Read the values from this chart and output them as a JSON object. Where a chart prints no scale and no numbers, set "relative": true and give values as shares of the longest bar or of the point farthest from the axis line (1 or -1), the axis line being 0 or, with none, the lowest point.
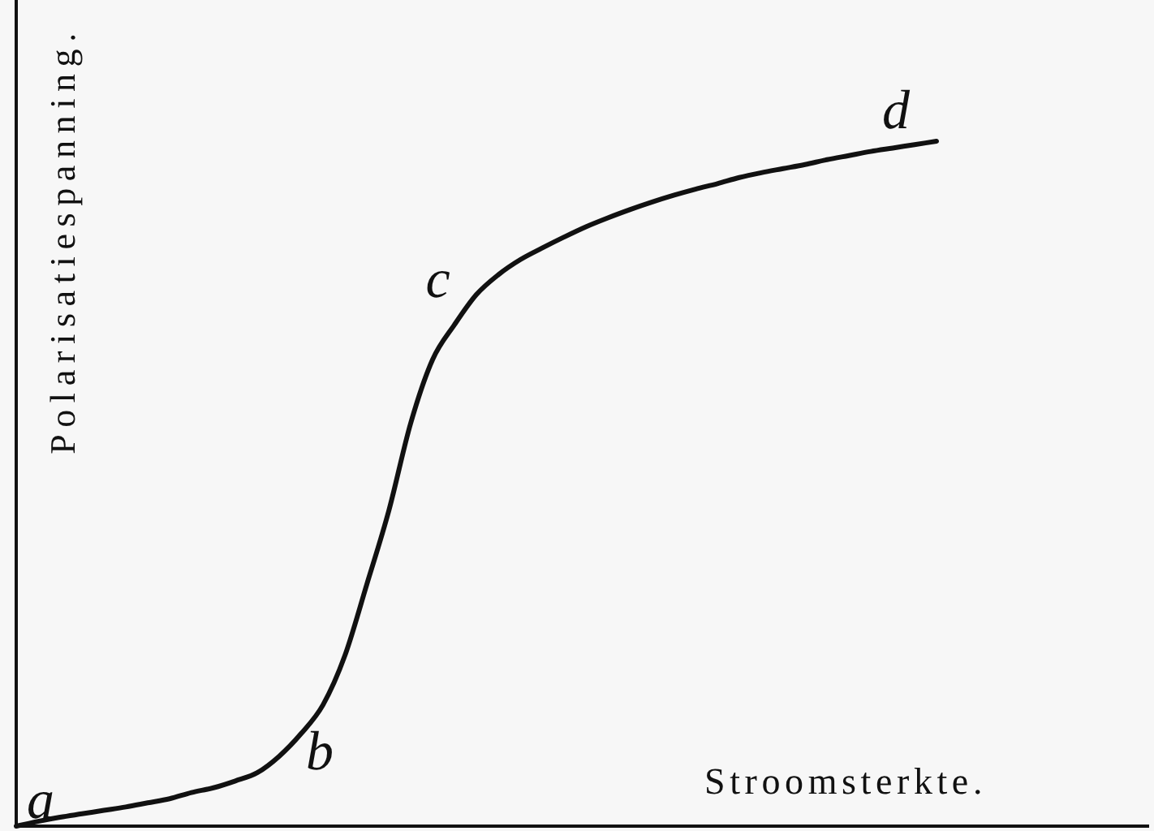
{
  "chart_data": {
    "type": "line",
    "relative": true,
    "xlabel": "Stroomsterkte.",
    "ylabel": "Polarisatiespanning.",
    "categories": [
      null,
      null,
      null,
      null,
      null,
      null,
      null,
      null,
      null,
      null,
      null,
      null,
      null,
      null,
      null,
      null,
      null,
      null,
      null,
      null,
      null,
      null,
      null,
      null,
      null,
      null,
      null,
      null,
      null,
      null,
      null,
      null,
      null,
      null,
      null,
      null,
      null,
      null,
      null,
      null,
      null,
      null,
      null
    ],
    "series": [
      {
        "color": "#111111",
        "values": [
          0,
          0.007,
          0.013,
          0.018,
          0.023,
          0.028,
          0.034,
          0.04,
          0.049,
          0.056,
          0.066,
          0.078,
          0.102,
          0.135,
          0.177,
          0.249,
          0.353,
          0.46,
          0.588,
          0.681,
          0.732,
          0.776,
          0.805,
          0.827,
          0.844,
          0.86,
          0.875,
          0.888,
          0.9,
          0.911,
          0.921,
          0.93,
          0.938,
          0.947,
          0.954,
          0.96,
          0.966,
          0.973,
          0.979,
          0.985,
          0.99,
          0.995,
          1
        ]
      }
    ],
    "annotations": [
      {
        "text": "a",
        "y": 0
      },
      "b",
      {
        "text": "c",
        "y": 0.72
      },
      {
        "text": "d",
        "y": 1
      }
    ]
  }
}
